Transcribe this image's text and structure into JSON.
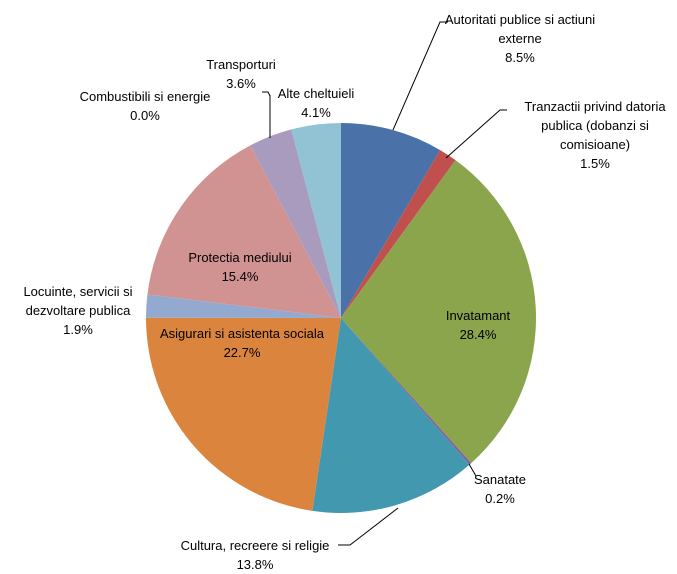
{
  "chart_data": {
    "type": "pie",
    "categories": [
      "Autoritati publice si actiuni externe",
      "Tranzactii privind datoria publica (dobanzi si comisioane)",
      "Invatamant",
      "Sanatate",
      "Cultura, recreere si religie",
      "Asigurari si asistenta sociala",
      "Locuinte, servicii si dezvoltare publica",
      "Protectia mediului",
      "Combustibili si energie",
      "Transporturi",
      "Alte cheltuieli"
    ],
    "values": [
      8.5,
      1.5,
      28.4,
      0.2,
      13.8,
      22.7,
      1.9,
      15.4,
      0.0,
      3.6,
      4.1
    ],
    "value_labels": [
      "8.5%",
      "1.5%",
      "28.4%",
      "0.2%",
      "13.8%",
      "22.7%",
      "1.9%",
      "15.4%",
      "0.0%",
      "3.6%",
      "4.1%"
    ],
    "colors": [
      "#4a72a8",
      "#c0504d",
      "#8ba54c",
      "#7f64a0",
      "#4198af",
      "#db843d",
      "#93a9cf",
      "#d09392",
      "#f79646",
      "#a99bbd",
      "#92c3d5"
    ]
  }
}
